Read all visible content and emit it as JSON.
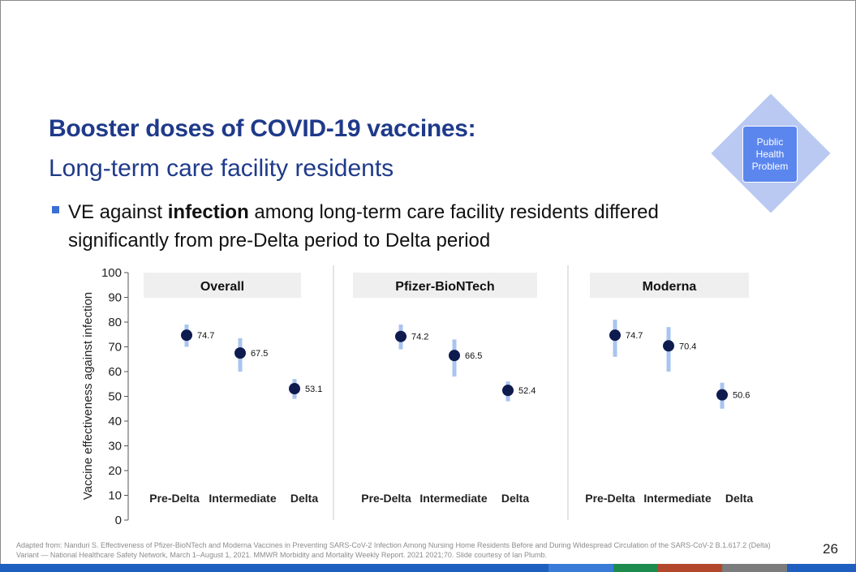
{
  "slide": {
    "title": "Booster doses of COVID-19 vaccines:",
    "subtitle": "Long-term care facility residents",
    "bullet_pre": "VE against ",
    "bullet_bold": "infection",
    "bullet_post": " among long-term care facility residents differed significantly from pre-Delta period to Delta period",
    "badge": "Public Health Problem",
    "footnote": "Adapted from: Nanduri S. Effectiveness of Pfizer-BioNTech and Moderna Vaccines in Preventing SARS-CoV-2 Infection Among Nursing Home Residents Before and During Widespread Circulation of the SARS-CoV-2 B.1.617.2 (Delta) Variant — National Healthcare Safety Network, March 1–August 1, 2021. MMWR Morbidity and Mortality Weekly Report. 2021 2021;70. Slide courtesy of Ian Plumb.",
    "page_number": "26"
  },
  "colors": {
    "title": "#1f3a8a",
    "point": "#0d1b4f",
    "ci_bar": "#a9c4ef",
    "panel_header_bg": "#efefef",
    "bottom_bar": [
      "#1f5fbf",
      "#1f5fbf",
      "#1f5fbf",
      "#1f5fbf",
      "#1f5fbf",
      "#3a7bd8",
      "#1e8b4e",
      "#b3472b",
      "#7c7c7c"
    ]
  },
  "chart_data": {
    "type": "scatter",
    "ylabel": "Vaccine effectiveness against infection",
    "ylim": [
      0,
      100
    ],
    "yticks": [
      0,
      10,
      20,
      30,
      40,
      50,
      60,
      70,
      80,
      90,
      100
    ],
    "categories": [
      "Pre-Delta",
      "Intermediate",
      "Delta"
    ],
    "panels": [
      {
        "title": "Overall",
        "points": [
          {
            "category": "Pre-Delta",
            "value": 74.7,
            "label": "74.7",
            "ci_low": 70,
            "ci_high": 79
          },
          {
            "category": "Intermediate",
            "value": 67.5,
            "label": "67.5",
            "ci_low": 60,
            "ci_high": 73.5
          },
          {
            "category": "Delta",
            "value": 53.1,
            "label": "53.1",
            "ci_low": 49,
            "ci_high": 57
          }
        ]
      },
      {
        "title": "Pfizer-BioNTech",
        "points": [
          {
            "category": "Pre-Delta",
            "value": 74.2,
            "label": "74.2",
            "ci_low": 69,
            "ci_high": 79
          },
          {
            "category": "Intermediate",
            "value": 66.5,
            "label": "66.5",
            "ci_low": 58,
            "ci_high": 73
          },
          {
            "category": "Delta",
            "value": 52.4,
            "label": "52.4",
            "ci_low": 48,
            "ci_high": 56
          }
        ]
      },
      {
        "title": "Moderna",
        "points": [
          {
            "category": "Pre-Delta",
            "value": 74.7,
            "label": "74.7",
            "ci_low": 66,
            "ci_high": 81
          },
          {
            "category": "Intermediate",
            "value": 70.4,
            "label": "70.4",
            "ci_low": 60,
            "ci_high": 78
          },
          {
            "category": "Delta",
            "value": 50.6,
            "label": "50.6",
            "ci_low": 45,
            "ci_high": 55.5
          }
        ]
      }
    ]
  }
}
